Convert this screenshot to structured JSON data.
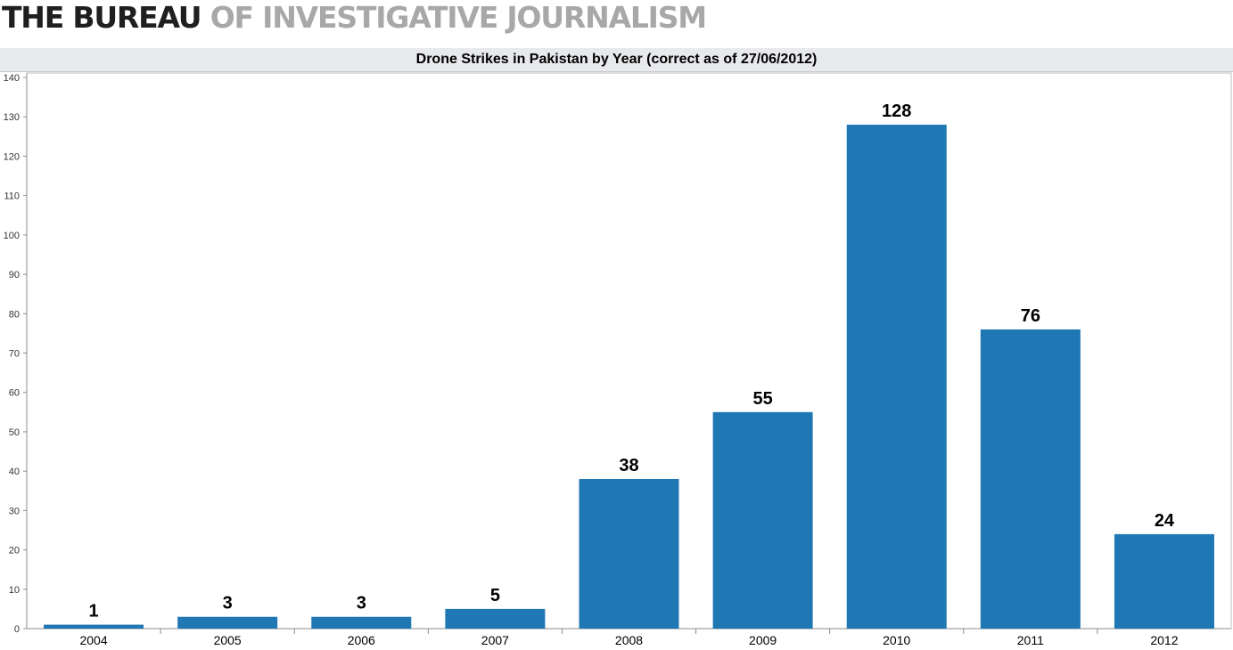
{
  "header": {
    "brand_dark": "THE BUREAU",
    "brand_light": "OF INVESTIGATIVE JOURNALISM"
  },
  "chart_data": {
    "type": "bar",
    "title": "Drone Strikes in Pakistan by Year (correct as of 27/06/2012)",
    "categories": [
      "2004",
      "2005",
      "2006",
      "2007",
      "2008",
      "2009",
      "2010",
      "2011",
      "2012"
    ],
    "values": [
      1,
      3,
      3,
      5,
      38,
      55,
      128,
      76,
      24
    ],
    "xlabel": "",
    "ylabel": "",
    "ylim": [
      0,
      140
    ],
    "yticks": [
      0,
      10,
      20,
      30,
      40,
      50,
      60,
      70,
      80,
      90,
      100,
      110,
      120,
      130,
      140
    ],
    "data_labels": true,
    "grid": false,
    "legend": "none",
    "bar_color": "#1f77b4"
  }
}
